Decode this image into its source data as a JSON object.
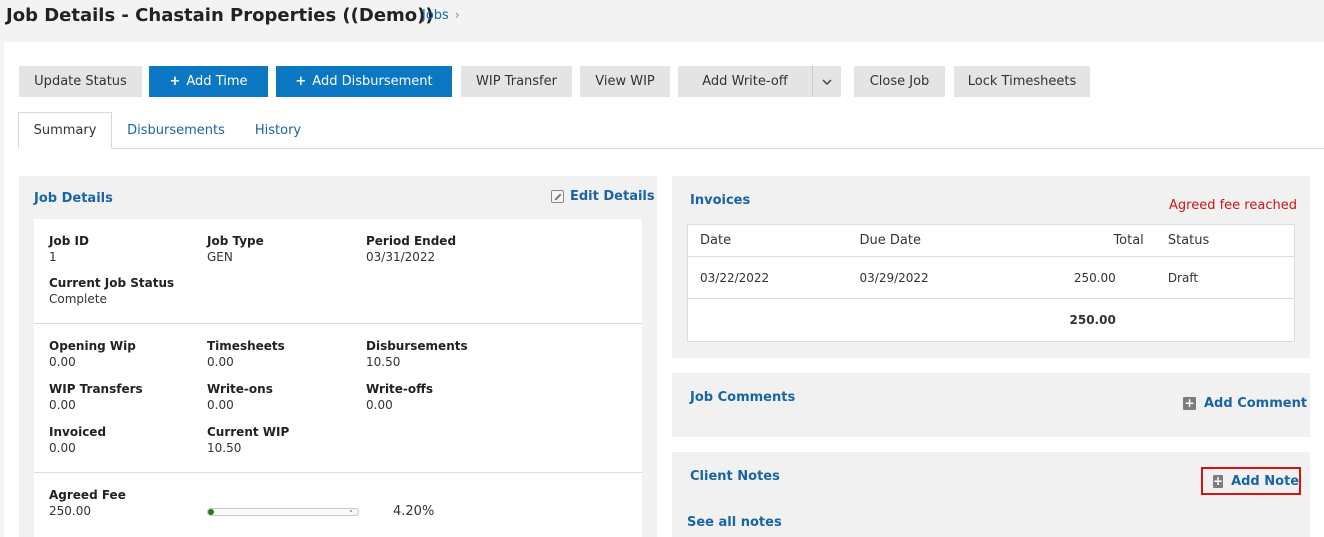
{
  "header": {
    "title": "Job Details - Chastain Properties ((Demo))",
    "breadcrumb": "Jobs"
  },
  "toolbar": {
    "update_status": "Update Status",
    "add_time": "Add Time",
    "add_disbursement": "Add Disbursement",
    "wip_transfer": "WIP Transfer",
    "view_wip": "View WIP",
    "add_writeoff": "Add Write-off",
    "close_job": "Close Job",
    "lock_timesheets": "Lock Timesheets"
  },
  "tabs": [
    "Summary",
    "Disbursements",
    "History"
  ],
  "job_details": {
    "title": "Job Details",
    "edit_label": "Edit Details",
    "job_id_label": "Job ID",
    "job_id": "1",
    "job_type_label": "Job Type",
    "job_type": "GEN",
    "period_ended_label": "Period Ended",
    "period_ended": "03/31/2022",
    "status_label": "Current Job Status",
    "status": "Complete",
    "opening_wip_label": "Opening Wip",
    "opening_wip": "0.00",
    "timesheets_label": "Timesheets",
    "timesheets": "0.00",
    "disbursements_label": "Disbursements",
    "disbursements": "10.50",
    "wip_transfers_label": "WIP Transfers",
    "wip_transfers": "0.00",
    "write_ons_label": "Write-ons",
    "write_ons": "0.00",
    "write_offs_label": "Write-offs",
    "write_offs": "0.00",
    "invoiced_label": "Invoiced",
    "invoiced": "0.00",
    "current_wip_label": "Current WIP",
    "current_wip": "10.50",
    "agreed_fee_label": "Agreed Fee",
    "agreed_fee": "250.00",
    "agreed_fee_percent": "4.20%",
    "agreed_fee_progress": 0.042
  },
  "invoices": {
    "title": "Invoices",
    "alert": "Agreed fee reached",
    "columns": [
      "Date",
      "Due Date",
      "Total",
      "Status"
    ],
    "rows": [
      {
        "date": "03/22/2022",
        "due_date": "03/29/2022",
        "total": "250.00",
        "status": "Draft"
      }
    ],
    "grand_total": "250.00"
  },
  "job_comments": {
    "title": "Job Comments",
    "add_label": "Add Comment"
  },
  "client_notes": {
    "title": "Client Notes",
    "add_label": "Add Note",
    "see_all": "See all notes"
  },
  "colors": {
    "accent": "#0c77c3",
    "link": "#1a64a6",
    "alert": "#d01414",
    "progress": "#1f7a1f"
  }
}
